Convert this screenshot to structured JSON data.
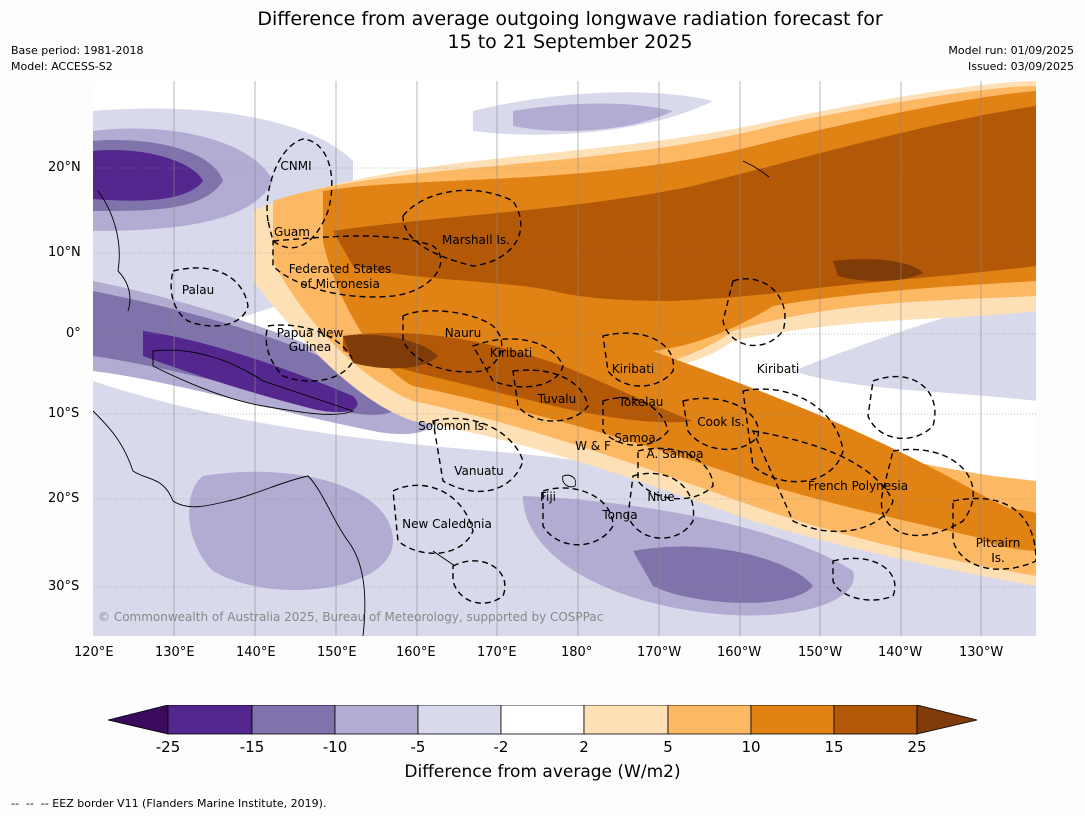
{
  "header": {
    "title_line1": "Difference from average outgoing longwave radiation forecast for",
    "title_line2": "15 to 21 September 2025",
    "base_period": "Base period: 1981-2018",
    "model": "Model: ACCESS-S2",
    "model_run": "Model run: 01/09/2025",
    "issued": "Issued: 03/09/2025"
  },
  "map": {
    "lat_labels": [
      "20°N",
      "10°N",
      "0°",
      "10°S",
      "20°S",
      "30°S"
    ],
    "lon_labels": [
      "120°E",
      "130°E",
      "140°E",
      "150°E",
      "160°E",
      "170°E",
      "180°",
      "170°W",
      "160°W",
      "150°W",
      "140°W",
      "130°W"
    ],
    "places": {
      "cnmi": "CNMI",
      "guam": "Guam",
      "marshall": "Marshall Is.",
      "fsm1": "Federated States",
      "fsm2": "of Micronesia",
      "palau": "Palau",
      "png1": "Papua New",
      "png2": "Guinea",
      "nauru": "Nauru",
      "kiribati_w": "Kiribati",
      "kiribati_c": "Kiribati",
      "kiribati_e": "Kiribati",
      "tuvalu": "Tuvalu",
      "tokelau": "Tokelau",
      "cook": "Cook Is.",
      "solomon": "Solomon Is.",
      "wf": "W & F",
      "samoa": "Samoa",
      "asamoa": "A. Samoa",
      "vanuatu": "Vanuatu",
      "fiji": "Fiji",
      "niue": "Niue",
      "tonga": "Tonga",
      "frpoly": "French Polynesia",
      "newcal": "New Caledonia",
      "pitcairn1": "Pitcairn",
      "pitcairn2": "Is."
    },
    "copyright": "© Commonwealth of Australia 2025, Bureau of Meteorology, supported by COSPPac"
  },
  "legend": {
    "title": "Difference from average (W/m2)",
    "ticks": [
      "-25",
      "-15",
      "-10",
      "-5",
      "-2",
      "2",
      "5",
      "10",
      "15",
      "25"
    ],
    "colors": [
      "#3a0a5c",
      "#54278f",
      "#8073ac",
      "#b2abd2",
      "#d8daeb",
      "#ffffff",
      "#fee0b6",
      "#fdb863",
      "#e08214",
      "#b35806",
      "#7f3b08"
    ]
  },
  "footer": {
    "eez_note": "--  --  -- EEZ border V11 (Flanders Marine Institute, 2019)."
  }
}
